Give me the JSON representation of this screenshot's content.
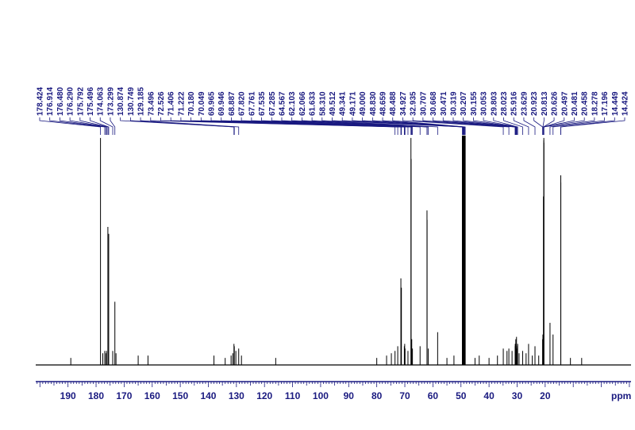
{
  "chart_data": {
    "type": "line",
    "title": "",
    "xlabel": "ppm",
    "ylabel": "",
    "x_reversed": true,
    "xlim": [
      201.5,
      -12
    ],
    "x_ticks": [
      190,
      180,
      170,
      160,
      150,
      140,
      130,
      120,
      110,
      100,
      90,
      80,
      70,
      60,
      50,
      40,
      30,
      20
    ],
    "peak_labels": [
      "178.424",
      "176.914",
      "176.480",
      "176.290",
      "175.792",
      "175.496",
      "174.063",
      "173.299",
      "130.874",
      "130.749",
      "129.185",
      "73.496",
      "72.526",
      "71.406",
      "71.222",
      "70.180",
      "70.049",
      "69.965",
      "69.946",
      "68.887",
      "67.820",
      "67.761",
      "67.535",
      "67.285",
      "64.567",
      "62.103",
      "62.066",
      "61.633",
      "58.310",
      "49.512",
      "49.341",
      "49.171",
      "49.000",
      "48.830",
      "48.659",
      "48.488",
      "34.927",
      "32.935",
      "30.707",
      "30.668",
      "30.471",
      "30.319",
      "30.207",
      "30.155",
      "30.053",
      "29.803",
      "28.023",
      "25.916",
      "23.629",
      "20.923",
      "20.813",
      "20.626",
      "20.497",
      "20.481",
      "20.458",
      "18.278",
      "17.196",
      "14.449",
      "14.424"
    ],
    "peaks": [
      {
        "ppm": 189.0,
        "h": 0.03
      },
      {
        "ppm": 178.424,
        "h": 0.97
      },
      {
        "ppm": 177.6,
        "h": 0.05
      },
      {
        "ppm": 176.914,
        "h": 0.06
      },
      {
        "ppm": 176.48,
        "h": 0.05
      },
      {
        "ppm": 176.29,
        "h": 0.06
      },
      {
        "ppm": 175.792,
        "h": 0.59
      },
      {
        "ppm": 175.496,
        "h": 0.56
      },
      {
        "ppm": 174.063,
        "h": 0.06
      },
      {
        "ppm": 173.299,
        "h": 0.27
      },
      {
        "ppm": 172.9,
        "h": 0.05
      },
      {
        "ppm": 165.0,
        "h": 0.04
      },
      {
        "ppm": 161.5,
        "h": 0.04
      },
      {
        "ppm": 138.0,
        "h": 0.04
      },
      {
        "ppm": 134.0,
        "h": 0.03
      },
      {
        "ppm": 131.9,
        "h": 0.04
      },
      {
        "ppm": 131.3,
        "h": 0.05
      },
      {
        "ppm": 130.874,
        "h": 0.09
      },
      {
        "ppm": 130.749,
        "h": 0.08
      },
      {
        "ppm": 130.2,
        "h": 0.06
      },
      {
        "ppm": 129.185,
        "h": 0.07
      },
      {
        "ppm": 128.2,
        "h": 0.04
      },
      {
        "ppm": 116.0,
        "h": 0.03
      },
      {
        "ppm": 80.0,
        "h": 0.03
      },
      {
        "ppm": 76.5,
        "h": 0.04
      },
      {
        "ppm": 74.8,
        "h": 0.05
      },
      {
        "ppm": 73.496,
        "h": 0.06
      },
      {
        "ppm": 72.526,
        "h": 0.08
      },
      {
        "ppm": 71.406,
        "h": 0.37
      },
      {
        "ppm": 71.222,
        "h": 0.33
      },
      {
        "ppm": 70.18,
        "h": 0.08
      },
      {
        "ppm": 70.049,
        "h": 0.09
      },
      {
        "ppm": 69.965,
        "h": 0.07
      },
      {
        "ppm": 69.946,
        "h": 0.07
      },
      {
        "ppm": 68.887,
        "h": 0.06
      },
      {
        "ppm": 67.82,
        "h": 0.97
      },
      {
        "ppm": 67.761,
        "h": 0.88
      },
      {
        "ppm": 67.535,
        "h": 0.11
      },
      {
        "ppm": 67.285,
        "h": 0.07
      },
      {
        "ppm": 64.567,
        "h": 0.08
      },
      {
        "ppm": 62.103,
        "h": 0.66
      },
      {
        "ppm": 62.066,
        "h": 0.62
      },
      {
        "ppm": 61.633,
        "h": 0.07
      },
      {
        "ppm": 58.31,
        "h": 0.14
      },
      {
        "ppm": 55.0,
        "h": 0.03
      },
      {
        "ppm": 52.5,
        "h": 0.04
      },
      {
        "ppm": 49.512,
        "h": 0.98
      },
      {
        "ppm": 49.341,
        "h": 0.98
      },
      {
        "ppm": 49.171,
        "h": 0.98
      },
      {
        "ppm": 49.0,
        "h": 0.98
      },
      {
        "ppm": 48.83,
        "h": 0.98
      },
      {
        "ppm": 48.659,
        "h": 0.98
      },
      {
        "ppm": 48.488,
        "h": 0.98
      },
      {
        "ppm": 45.0,
        "h": 0.03
      },
      {
        "ppm": 43.5,
        "h": 0.04
      },
      {
        "ppm": 40.0,
        "h": 0.03
      },
      {
        "ppm": 37.0,
        "h": 0.04
      },
      {
        "ppm": 34.927,
        "h": 0.07
      },
      {
        "ppm": 33.6,
        "h": 0.06
      },
      {
        "ppm": 32.935,
        "h": 0.07
      },
      {
        "ppm": 31.8,
        "h": 0.06
      },
      {
        "ppm": 30.707,
        "h": 0.08
      },
      {
        "ppm": 30.668,
        "h": 0.09
      },
      {
        "ppm": 30.471,
        "h": 0.11
      },
      {
        "ppm": 30.319,
        "h": 0.07
      },
      {
        "ppm": 30.207,
        "h": 0.12
      },
      {
        "ppm": 30.155,
        "h": 0.08
      },
      {
        "ppm": 30.053,
        "h": 0.07
      },
      {
        "ppm": 29.803,
        "h": 0.09
      },
      {
        "ppm": 29.3,
        "h": 0.05
      },
      {
        "ppm": 28.023,
        "h": 0.06
      },
      {
        "ppm": 26.8,
        "h": 0.05
      },
      {
        "ppm": 25.916,
        "h": 0.09
      },
      {
        "ppm": 24.6,
        "h": 0.04
      },
      {
        "ppm": 23.629,
        "h": 0.08
      },
      {
        "ppm": 22.3,
        "h": 0.04
      },
      {
        "ppm": 20.923,
        "h": 0.11
      },
      {
        "ppm": 20.813,
        "h": 0.13
      },
      {
        "ppm": 20.626,
        "h": 0.72
      },
      {
        "ppm": 20.497,
        "h": 0.96
      },
      {
        "ppm": 20.481,
        "h": 0.97
      },
      {
        "ppm": 20.458,
        "h": 0.95
      },
      {
        "ppm": 18.278,
        "h": 0.18
      },
      {
        "ppm": 17.196,
        "h": 0.13
      },
      {
        "ppm": 14.449,
        "h": 0.81
      },
      {
        "ppm": 14.424,
        "h": 0.78
      },
      {
        "ppm": 11.0,
        "h": 0.03
      },
      {
        "ppm": 7.0,
        "h": 0.03
      }
    ],
    "grid": false,
    "colors": {
      "label_text": "#1a1a80",
      "axis": "#1a1a80",
      "trace": "#000000"
    }
  }
}
